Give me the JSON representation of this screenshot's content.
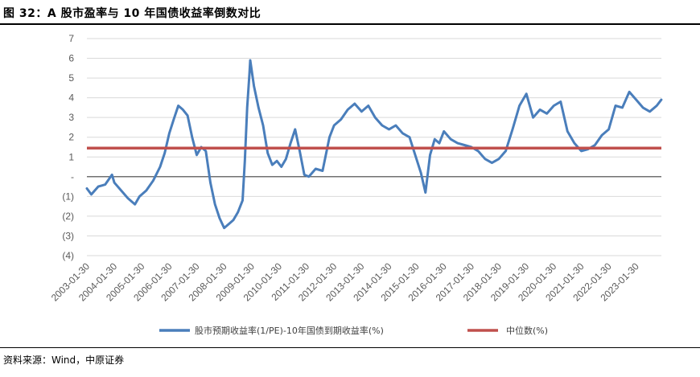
{
  "header": {
    "title": "图 32：A 股市盈率与 10 年国债收益率倒数对比"
  },
  "footer": {
    "source": "资料来源：Wind，中原证券"
  },
  "chart_data": {
    "type": "line",
    "title": "图 32：A 股市盈率与 10 年国债收益率倒数对比",
    "ylim": [
      -4,
      7
    ],
    "y_ticks": [
      7,
      6,
      5,
      4,
      3,
      2,
      1,
      0,
      -1,
      -2,
      -3,
      -4
    ],
    "y_tick_labels": [
      "7",
      "6",
      "5",
      "4",
      "3",
      "2",
      "1",
      "-",
      "(1)",
      "(2)",
      "(3)",
      "(4)"
    ],
    "x_tick_labels": [
      "2003-01-30",
      "2004-01-30",
      "2005-01-30",
      "2006-01-30",
      "2007-01-30",
      "2008-01-30",
      "2009-01-30",
      "2010-01-30",
      "2011-01-30",
      "2012-01-30",
      "2013-01-30",
      "2014-01-30",
      "2015-01-30",
      "2016-01-30",
      "2017-01-30",
      "2018-01-30",
      "2019-01-30",
      "2020-01-30",
      "2021-01-30",
      "2022-01-30",
      "2023-01-30"
    ],
    "x_range": [
      "2003-01-30",
      "2023-12-31"
    ],
    "legend_position": "bottom",
    "grid": true,
    "series": [
      {
        "name": "股市预期收益率(1/PE)-10年国债到期收益率(%)",
        "color": "#4A7EBB",
        "points": [
          [
            "2003-01-30",
            -0.6
          ],
          [
            "2003-03-30",
            -0.9
          ],
          [
            "2003-06-30",
            -0.5
          ],
          [
            "2003-09-30",
            -0.4
          ],
          [
            "2003-12-30",
            0.1
          ],
          [
            "2004-01-30",
            -0.3
          ],
          [
            "2004-04-30",
            -0.7
          ],
          [
            "2004-07-30",
            -1.1
          ],
          [
            "2004-10-30",
            -1.4
          ],
          [
            "2004-12-30",
            -1.0
          ],
          [
            "2005-03-30",
            -0.7
          ],
          [
            "2005-06-30",
            -0.2
          ],
          [
            "2005-09-30",
            0.5
          ],
          [
            "2005-11-30",
            1.2
          ],
          [
            "2006-01-30",
            2.2
          ],
          [
            "2006-03-30",
            2.9
          ],
          [
            "2006-05-30",
            3.6
          ],
          [
            "2006-07-30",
            3.4
          ],
          [
            "2006-09-30",
            3.1
          ],
          [
            "2006-11-30",
            2.0
          ],
          [
            "2007-01-30",
            1.1
          ],
          [
            "2007-03-30",
            1.5
          ],
          [
            "2007-05-30",
            1.3
          ],
          [
            "2007-07-30",
            -0.3
          ],
          [
            "2007-09-30",
            -1.4
          ],
          [
            "2007-11-30",
            -2.1
          ],
          [
            "2008-01-30",
            -2.6
          ],
          [
            "2008-03-30",
            -2.4
          ],
          [
            "2008-05-30",
            -2.2
          ],
          [
            "2008-07-30",
            -1.8
          ],
          [
            "2008-09-30",
            -1.2
          ],
          [
            "2008-10-30",
            0.8
          ],
          [
            "2008-11-30",
            3.5
          ],
          [
            "2008-12-30",
            5.2
          ],
          [
            "2009-01-10",
            5.9
          ],
          [
            "2009-02-28",
            4.6
          ],
          [
            "2009-04-30",
            3.5
          ],
          [
            "2009-06-30",
            2.6
          ],
          [
            "2009-08-30",
            1.2
          ],
          [
            "2009-10-30",
            0.6
          ],
          [
            "2009-12-30",
            0.8
          ],
          [
            "2010-02-28",
            0.5
          ],
          [
            "2010-04-30",
            0.9
          ],
          [
            "2010-06-30",
            1.7
          ],
          [
            "2010-08-30",
            2.4
          ],
          [
            "2010-10-30",
            1.3
          ],
          [
            "2010-12-30",
            0.1
          ],
          [
            "2011-02-28",
            0.0
          ],
          [
            "2011-05-30",
            0.4
          ],
          [
            "2011-08-30",
            0.3
          ],
          [
            "2011-11-30",
            2.0
          ],
          [
            "2012-01-30",
            2.6
          ],
          [
            "2012-04-30",
            2.9
          ],
          [
            "2012-07-30",
            3.4
          ],
          [
            "2012-10-30",
            3.7
          ],
          [
            "2013-01-30",
            3.3
          ],
          [
            "2013-04-30",
            3.6
          ],
          [
            "2013-07-30",
            3.0
          ],
          [
            "2013-10-30",
            2.6
          ],
          [
            "2014-01-30",
            2.4
          ],
          [
            "2014-04-30",
            2.6
          ],
          [
            "2014-07-30",
            2.2
          ],
          [
            "2014-10-30",
            2.0
          ],
          [
            "2015-01-30",
            0.9
          ],
          [
            "2015-03-30",
            0.2
          ],
          [
            "2015-05-30",
            -0.8
          ],
          [
            "2015-07-30",
            1.1
          ],
          [
            "2015-09-30",
            1.9
          ],
          [
            "2015-11-30",
            1.7
          ],
          [
            "2016-01-30",
            2.3
          ],
          [
            "2016-04-30",
            1.9
          ],
          [
            "2016-07-30",
            1.7
          ],
          [
            "2016-10-30",
            1.6
          ],
          [
            "2017-01-30",
            1.5
          ],
          [
            "2017-04-30",
            1.3
          ],
          [
            "2017-07-30",
            0.9
          ],
          [
            "2017-10-30",
            0.7
          ],
          [
            "2018-01-30",
            0.9
          ],
          [
            "2018-04-30",
            1.3
          ],
          [
            "2018-07-30",
            2.4
          ],
          [
            "2018-10-30",
            3.6
          ],
          [
            "2019-01-30",
            4.2
          ],
          [
            "2019-04-30",
            3.0
          ],
          [
            "2019-07-30",
            3.4
          ],
          [
            "2019-10-30",
            3.2
          ],
          [
            "2020-01-30",
            3.6
          ],
          [
            "2020-04-30",
            3.8
          ],
          [
            "2020-07-30",
            2.3
          ],
          [
            "2020-10-30",
            1.7
          ],
          [
            "2021-01-30",
            1.3
          ],
          [
            "2021-04-30",
            1.4
          ],
          [
            "2021-07-30",
            1.6
          ],
          [
            "2021-10-30",
            2.1
          ],
          [
            "2022-01-30",
            2.4
          ],
          [
            "2022-04-30",
            3.6
          ],
          [
            "2022-07-30",
            3.5
          ],
          [
            "2022-10-30",
            4.3
          ],
          [
            "2023-01-30",
            3.9
          ],
          [
            "2023-04-30",
            3.5
          ],
          [
            "2023-07-30",
            3.3
          ],
          [
            "2023-10-30",
            3.6
          ],
          [
            "2023-12-30",
            3.9
          ]
        ]
      },
      {
        "name": "中位数(%)",
        "color": "#C0504D",
        "value": 1.45
      }
    ]
  }
}
